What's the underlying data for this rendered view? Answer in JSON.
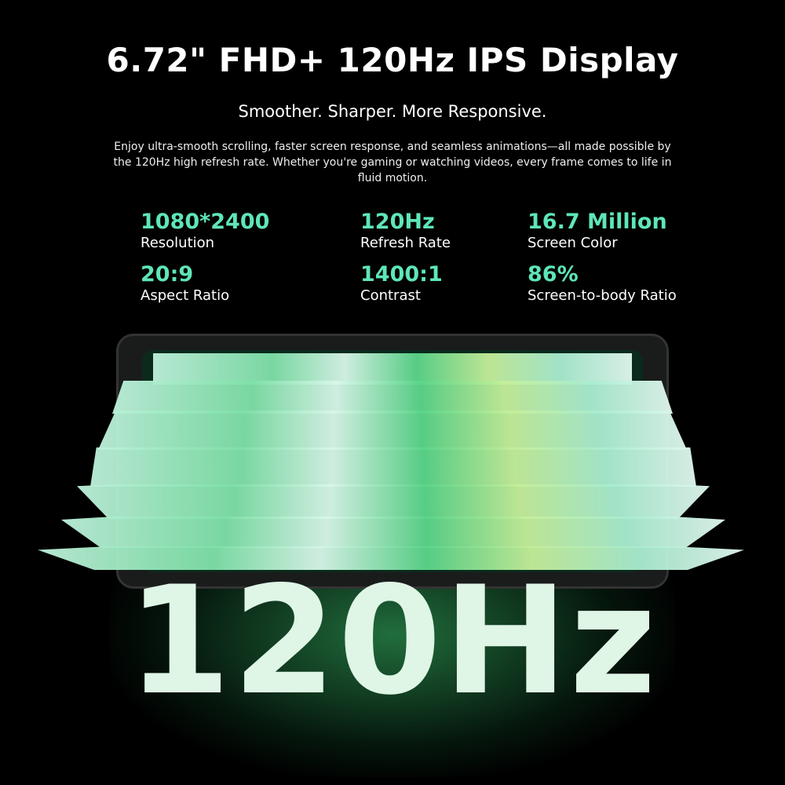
{
  "accent_color": "#5ee6b8",
  "title": "6.72\" FHD+ 120Hz IPS Display",
  "subtitle": "Smoother. Sharper. More Responsive.",
  "description": "Enjoy ultra-smooth scrolling, faster screen response, and seamless animations—all made possible by the 120Hz high refresh rate. Whether you're gaming or watching videos, every frame comes to life in fluid motion.",
  "specs": [
    {
      "value": "1080*2400",
      "label": "Resolution"
    },
    {
      "value": "120Hz",
      "label": "Refresh Rate"
    },
    {
      "value": "16.7 Million",
      "label": "Screen Color"
    },
    {
      "value": "20:9",
      "label": "Aspect Ratio"
    },
    {
      "value": "1400:1",
      "label": "Contrast"
    },
    {
      "value": "86%",
      "label": "Screen-to-body Ratio"
    }
  ],
  "hero_text": "120Hz"
}
